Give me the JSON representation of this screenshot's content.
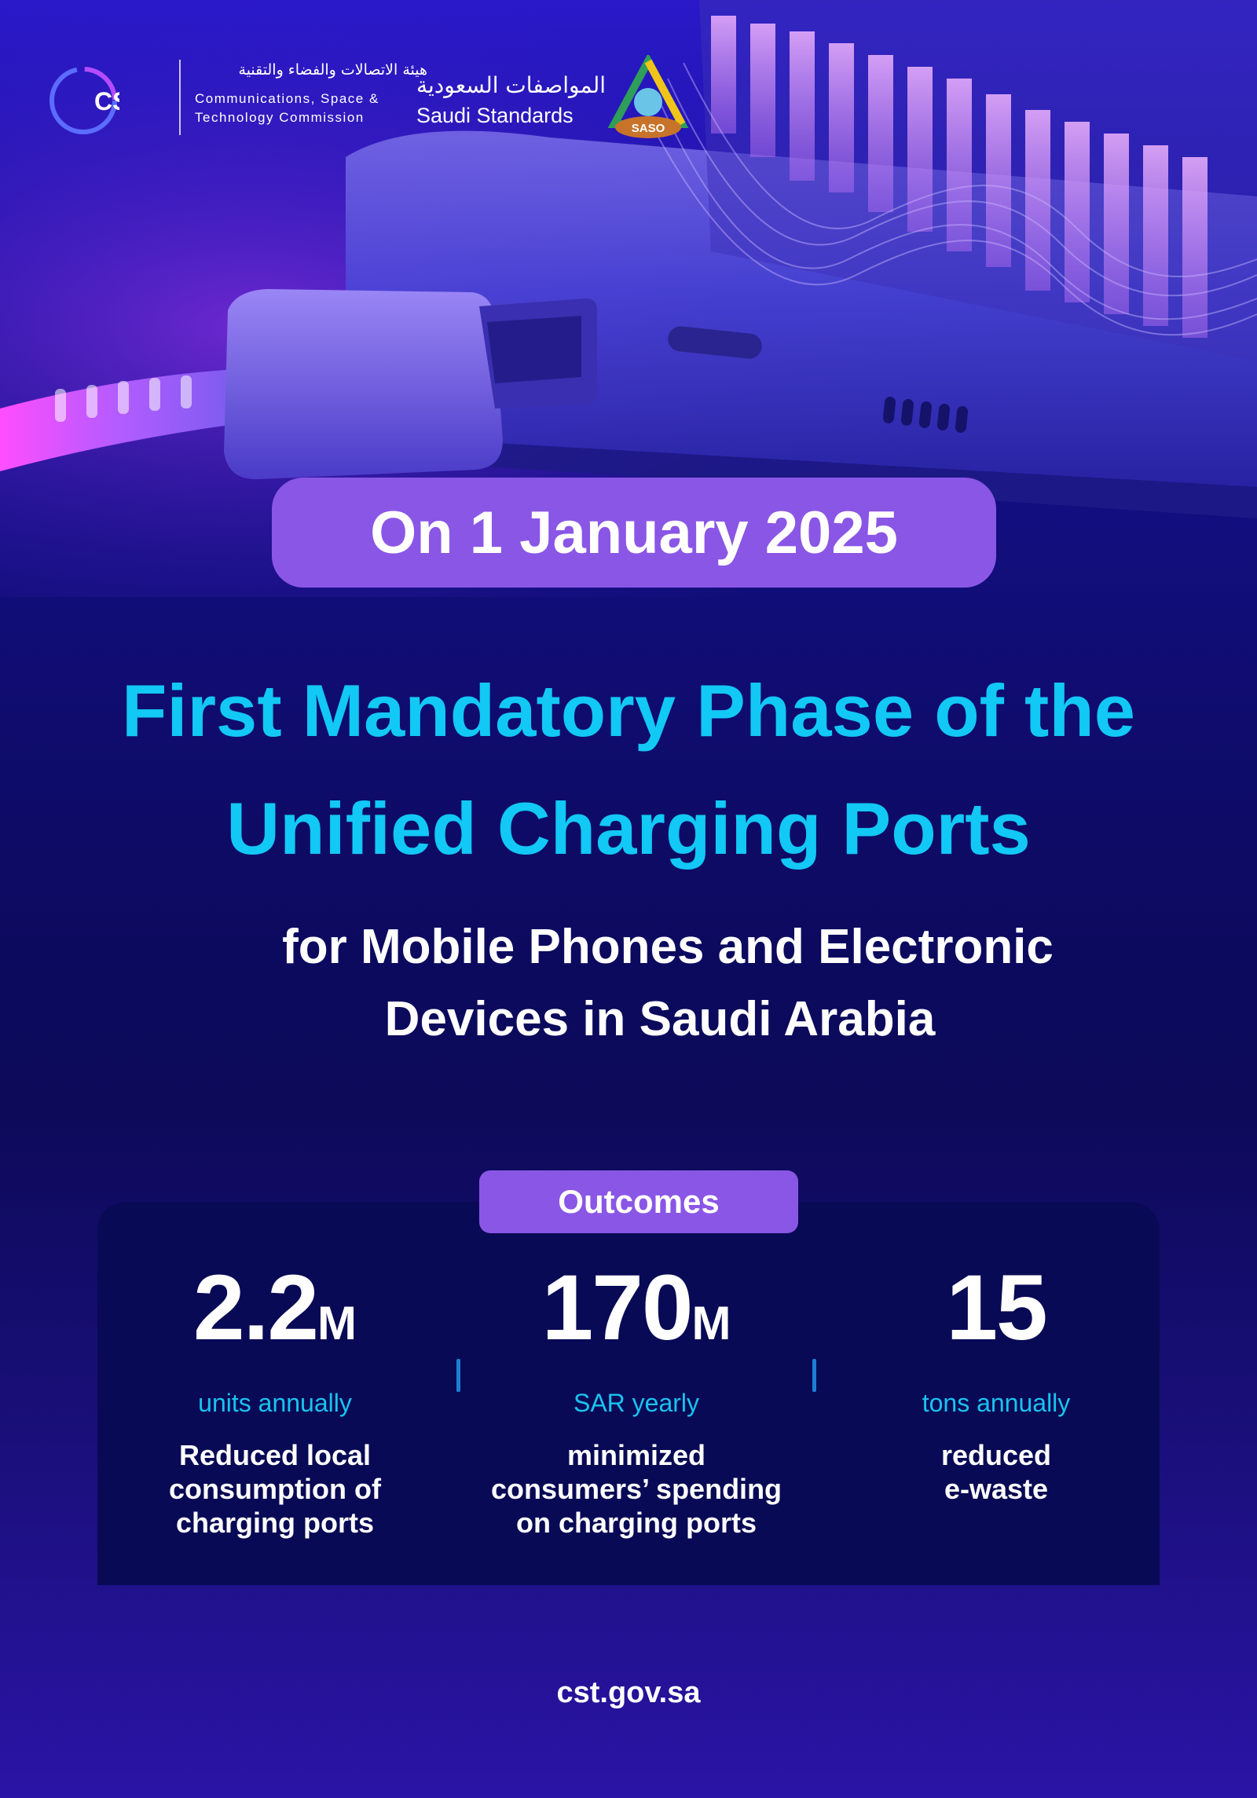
{
  "logos": {
    "cst": {
      "mark_text": "CST",
      "name_ar": "هيئة الاتصالات والفضاء والتقنية",
      "name_en_line1": "Communications, Space &",
      "name_en_line2": "Technology Commission"
    },
    "saso": {
      "name_ar": "المواصفات السعودية",
      "name_en": "Saudi Standards",
      "mark_text": "SASO"
    }
  },
  "date_label": "On 1 January 2025",
  "headline": "First Mandatory Phase of the Unified Charging Ports",
  "subheadline": {
    "line1": "for Mobile Phones and Electronic",
    "line2": "Devices in Saudi Arabia"
  },
  "outcomes": {
    "title": "Outcomes",
    "items": [
      {
        "value": "2.2",
        "suffix": "M",
        "unit": "units annually",
        "desc": [
          "Reduced local",
          "consumption of",
          "charging ports"
        ]
      },
      {
        "value": "170",
        "suffix": "M",
        "unit": "SAR yearly",
        "desc": [
          "minimized",
          "consumers’ spending",
          "on charging ports"
        ]
      },
      {
        "value": "15",
        "suffix": "",
        "unit": "tons annually",
        "desc": [
          "reduced",
          "e-waste"
        ]
      }
    ]
  },
  "footer_url": "cst.gov.sa",
  "colors": {
    "accent_cyan": "#12c8f5",
    "pill_purple": "#8a56e6",
    "panel_navy": "#090a55"
  }
}
